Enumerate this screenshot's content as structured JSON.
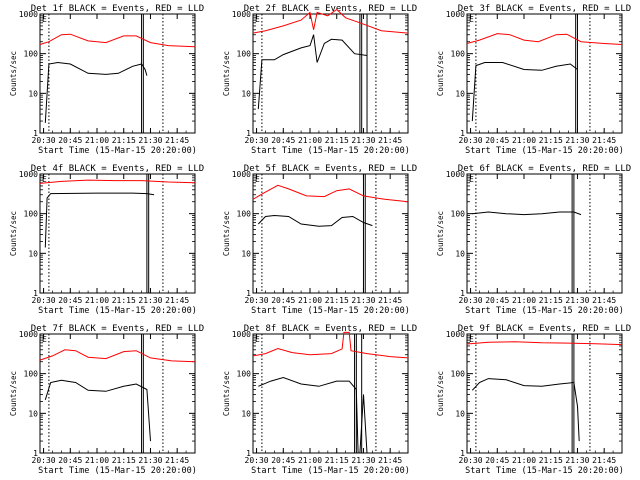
{
  "chart_data": {
    "type": "line",
    "scale": "log",
    "ylim": [
      1,
      1000
    ],
    "yticks": [
      1,
      10,
      100,
      1000
    ],
    "ytick_labels": [
      "1",
      "10",
      "100",
      "1000"
    ],
    "xlim": [
      "20:28",
      "21:55"
    ],
    "xticks": [
      "20:30",
      "20:45",
      "21:00",
      "21:15",
      "21:30",
      "21:45"
    ],
    "xtick_labels": [
      "20:30",
      "20:45",
      "21:00",
      "21:15",
      "21:30",
      "21:45"
    ],
    "xlabel": "Start Time (15-Mar-15 20:20:00)",
    "ylabel": "Counts/sec",
    "colors": {
      "events": "#000000",
      "lld": "#ff0000"
    },
    "panels": [
      {
        "title": "Det 1f BLACK = Events, RED = LLD",
        "dotted_lines": [
          "20:33",
          "21:37"
        ],
        "solid_lines": [
          "21:25",
          "21:26"
        ],
        "events": [
          [
            "20:31",
            1.8
          ],
          [
            "20:33",
            55
          ],
          [
            "20:38",
            60
          ],
          [
            "20:45",
            55
          ],
          [
            "20:55",
            32
          ],
          [
            "21:05",
            30
          ],
          [
            "21:12",
            32
          ],
          [
            "21:20",
            48
          ],
          [
            "21:25",
            55
          ],
          [
            "21:27",
            40
          ],
          [
            "21:28",
            28
          ]
        ],
        "lld": [
          [
            "20:28",
            170
          ],
          [
            "20:33",
            200
          ],
          [
            "20:40",
            300
          ],
          [
            "20:45",
            310
          ],
          [
            "20:55",
            210
          ],
          [
            "21:05",
            190
          ],
          [
            "21:15",
            280
          ],
          [
            "21:22",
            280
          ],
          [
            "21:30",
            190
          ],
          [
            "21:40",
            160
          ],
          [
            "21:55",
            150
          ]
        ]
      },
      {
        "title": "Det 2f BLACK = Events, RED = LLD",
        "dotted_lines": [
          "20:33",
          "21:37"
        ],
        "solid_lines": [
          "21:28",
          "21:29",
          "21:32"
        ],
        "events": [
          [
            "20:31",
            4
          ],
          [
            "20:33",
            70
          ],
          [
            "20:40",
            70
          ],
          [
            "20:45",
            95
          ],
          [
            "20:55",
            140
          ],
          [
            "21:00",
            160
          ],
          [
            "21:02",
            300
          ],
          [
            "21:04",
            60
          ],
          [
            "21:08",
            180
          ],
          [
            "21:12",
            230
          ],
          [
            "21:18",
            220
          ],
          [
            "21:25",
            100
          ],
          [
            "21:32",
            90
          ]
        ],
        "lld": [
          [
            "20:28",
            330
          ],
          [
            "20:35",
            380
          ],
          [
            "20:45",
            500
          ],
          [
            "20:55",
            700
          ],
          [
            "21:00",
            1100
          ],
          [
            "21:02",
            400
          ],
          [
            "21:04",
            1100
          ],
          [
            "21:10",
            900
          ],
          [
            "21:15",
            1300
          ],
          [
            "21:20",
            800
          ],
          [
            "21:28",
            600
          ],
          [
            "21:40",
            380
          ],
          [
            "21:55",
            330
          ]
        ]
      },
      {
        "title": "Det 3f BLACK = Events, RED = LLD",
        "dotted_lines": [
          "20:33",
          "21:37"
        ],
        "solid_lines": [
          "21:29",
          "21:30"
        ],
        "events": [
          [
            "20:31",
            2
          ],
          [
            "20:33",
            50
          ],
          [
            "20:38",
            60
          ],
          [
            "20:48",
            60
          ],
          [
            "21:00",
            40
          ],
          [
            "21:10",
            38
          ],
          [
            "21:18",
            48
          ],
          [
            "21:26",
            55
          ],
          [
            "21:30",
            40
          ]
        ],
        "lld": [
          [
            "20:28",
            180
          ],
          [
            "20:35",
            220
          ],
          [
            "20:45",
            320
          ],
          [
            "20:52",
            300
          ],
          [
            "21:00",
            220
          ],
          [
            "21:08",
            200
          ],
          [
            "21:18",
            300
          ],
          [
            "21:24",
            310
          ],
          [
            "21:32",
            200
          ],
          [
            "21:45",
            180
          ],
          [
            "21:55",
            170
          ]
        ]
      },
      {
        "title": "Det 4f BLACK = Events, RED = LLD",
        "dotted_lines": [
          "20:33",
          "21:37"
        ],
        "solid_lines": [
          "21:28",
          "21:29"
        ],
        "events": [
          [
            "20:31",
            14
          ],
          [
            "20:32",
            250
          ],
          [
            "20:34",
            320
          ],
          [
            "21:00",
            330
          ],
          [
            "21:20",
            330
          ],
          [
            "21:28",
            320
          ],
          [
            "21:32",
            300
          ]
        ],
        "lld": [
          [
            "20:28",
            580
          ],
          [
            "20:40",
            650
          ],
          [
            "20:55",
            700
          ],
          [
            "21:10",
            680
          ],
          [
            "21:25",
            680
          ],
          [
            "21:40",
            630
          ],
          [
            "21:55",
            600
          ]
        ]
      },
      {
        "title": "Det 5f BLACK = Events, RED = LLD",
        "dotted_lines": [
          "20:33",
          "21:37"
        ],
        "solid_lines": [
          "21:30",
          "21:31"
        ],
        "events": [
          [
            "20:31",
            55
          ],
          [
            "20:35",
            85
          ],
          [
            "20:40",
            90
          ],
          [
            "20:48",
            85
          ],
          [
            "20:55",
            55
          ],
          [
            "21:05",
            48
          ],
          [
            "21:12",
            50
          ],
          [
            "21:18",
            80
          ],
          [
            "21:24",
            85
          ],
          [
            "21:30",
            60
          ],
          [
            "21:35",
            50
          ]
        ],
        "lld": [
          [
            "20:28",
            230
          ],
          [
            "20:35",
            350
          ],
          [
            "20:42",
            520
          ],
          [
            "20:48",
            420
          ],
          [
            "20:58",
            280
          ],
          [
            "21:08",
            270
          ],
          [
            "21:15",
            380
          ],
          [
            "21:22",
            420
          ],
          [
            "21:30",
            280
          ],
          [
            "21:42",
            230
          ],
          [
            "21:55",
            200
          ]
        ]
      },
      {
        "title": "Det 6f BLACK = Events, RED = LLD",
        "dotted_lines": [
          "20:33",
          "21:37"
        ],
        "solid_lines": [
          "21:27",
          "21:28"
        ],
        "events": [
          [
            "20:31",
            100
          ],
          [
            "20:40",
            110
          ],
          [
            "20:50",
            100
          ],
          [
            "21:00",
            95
          ],
          [
            "21:10",
            100
          ],
          [
            "21:20",
            110
          ],
          [
            "21:28",
            110
          ],
          [
            "21:32",
            95
          ]
        ],
        "lld": []
      },
      {
        "title": "Det 7f BLACK = Events, RED = LLD",
        "dotted_lines": [
          "20:33",
          "21:37"
        ],
        "solid_lines": [
          "21:25",
          "21:26"
        ],
        "events": [
          [
            "20:31",
            22
          ],
          [
            "20:34",
            60
          ],
          [
            "20:40",
            68
          ],
          [
            "20:48",
            60
          ],
          [
            "20:55",
            38
          ],
          [
            "21:05",
            36
          ],
          [
            "21:15",
            48
          ],
          [
            "21:22",
            55
          ],
          [
            "21:28",
            40
          ],
          [
            "21:30",
            2
          ]
        ],
        "lld": [
          [
            "20:28",
            220
          ],
          [
            "20:35",
            280
          ],
          [
            "20:42",
            400
          ],
          [
            "20:48",
            380
          ],
          [
            "20:55",
            260
          ],
          [
            "21:05",
            240
          ],
          [
            "21:15",
            360
          ],
          [
            "21:22",
            380
          ],
          [
            "21:30",
            250
          ],
          [
            "21:42",
            210
          ],
          [
            "21:55",
            200
          ]
        ]
      },
      {
        "title": "Det 8f BLACK = Events, RED = LLD",
        "dotted_lines": [
          "20:33",
          "21:37"
        ],
        "solid_lines": [
          "21:25",
          "21:26",
          "21:29"
        ],
        "events": [
          [
            "20:31",
            48
          ],
          [
            "20:38",
            65
          ],
          [
            "20:45",
            80
          ],
          [
            "20:55",
            55
          ],
          [
            "21:05",
            48
          ],
          [
            "21:15",
            65
          ],
          [
            "21:22",
            65
          ],
          [
            "21:26",
            40
          ],
          [
            "21:27",
            1
          ],
          [
            "21:28",
            1
          ],
          [
            "21:30",
            30
          ],
          [
            "21:32",
            1
          ]
        ],
        "lld": [
          [
            "20:28",
            280
          ],
          [
            "20:35",
            320
          ],
          [
            "20:42",
            430
          ],
          [
            "20:50",
            340
          ],
          [
            "21:00",
            300
          ],
          [
            "21:12",
            320
          ],
          [
            "21:18",
            420
          ],
          [
            "21:19",
            1100
          ],
          [
            "21:22",
            1100
          ],
          [
            "21:23",
            380
          ],
          [
            "21:32",
            320
          ],
          [
            "21:45",
            270
          ],
          [
            "21:55",
            250
          ]
        ]
      },
      {
        "title": "Det 9f BLACK = Events, RED = LLD",
        "dotted_lines": [
          "20:33",
          "21:37"
        ],
        "solid_lines": [
          "21:27",
          "21:28"
        ],
        "events": [
          [
            "20:31",
            38
          ],
          [
            "20:35",
            60
          ],
          [
            "20:40",
            75
          ],
          [
            "20:50",
            70
          ],
          [
            "21:00",
            50
          ],
          [
            "21:10",
            48
          ],
          [
            "21:20",
            55
          ],
          [
            "21:28",
            60
          ],
          [
            "21:30",
            15
          ],
          [
            "21:31",
            2
          ]
        ],
        "lld": [
          [
            "20:28",
            560
          ],
          [
            "20:40",
            620
          ],
          [
            "20:55",
            640
          ],
          [
            "21:10",
            600
          ],
          [
            "21:25",
            590
          ],
          [
            "21:40",
            570
          ],
          [
            "21:55",
            540
          ]
        ]
      }
    ]
  }
}
